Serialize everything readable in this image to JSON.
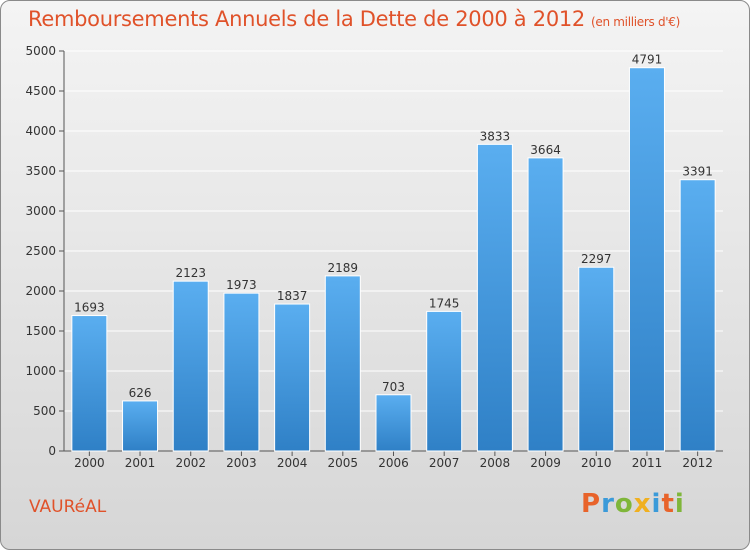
{
  "title": "Remboursements Annuels de la Dette de 2000 à 2012",
  "subtitle": "(en milliers d'€)",
  "city": "VAURéAL",
  "logo_text": "Proxiti",
  "colors": {
    "bar": "#3b8fd6",
    "bar_light": "#5aaef0",
    "title": "#e0522a",
    "grid": "#ffffff"
  },
  "chart_data": {
    "type": "bar",
    "title": "Remboursements Annuels de la Dette de 2000 à 2012",
    "subtitle": "(en milliers d'€)",
    "categories": [
      "2000",
      "2001",
      "2002",
      "2003",
      "2004",
      "2005",
      "2006",
      "2007",
      "2008",
      "2009",
      "2010",
      "2011",
      "2012"
    ],
    "values": [
      1693,
      626,
      2123,
      1973,
      1837,
      2189,
      703,
      1745,
      3833,
      3664,
      2297,
      4791,
      3391
    ],
    "ylim": [
      0,
      5000
    ],
    "yticks": [
      0,
      500,
      1000,
      1500,
      2000,
      2500,
      3000,
      3500,
      4000,
      4500,
      5000
    ],
    "grid": true,
    "data_labels": true
  }
}
